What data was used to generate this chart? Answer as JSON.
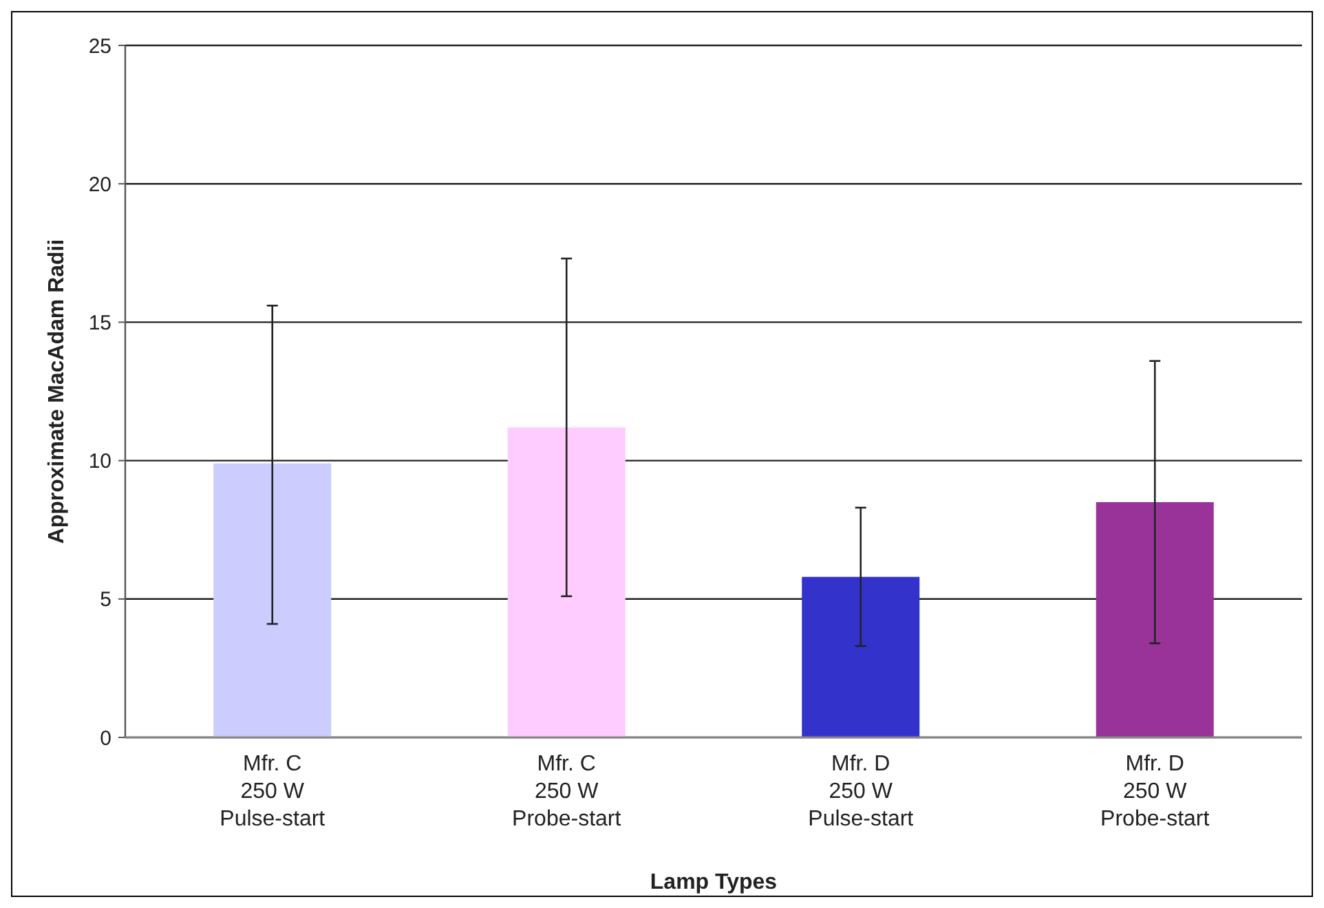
{
  "chart_data": {
    "type": "bar",
    "xlabel": "Lamp Types",
    "ylabel": "Approximate MacAdam Radii",
    "categories": [
      "Mfr. C\n250 W\nPulse-start",
      "Mfr. C\n250 W\nProbe-start",
      "Mfr. D\n250 W\nPulse-start",
      "Mfr. D\n250 W\nProbe-start"
    ],
    "values": [
      9.9,
      11.2,
      5.8,
      8.5
    ],
    "colors": [
      "#ccccff",
      "#ffccff",
      "#3333cc",
      "#993399"
    ],
    "errors": [
      [
        4.1,
        15.6
      ],
      [
        5.1,
        17.3
      ],
      [
        3.3,
        8.3
      ],
      [
        3.4,
        13.6
      ]
    ],
    "ylim": [
      0,
      25
    ],
    "yticks": [
      0,
      5,
      10,
      15,
      20,
      25
    ],
    "grid": "y"
  }
}
